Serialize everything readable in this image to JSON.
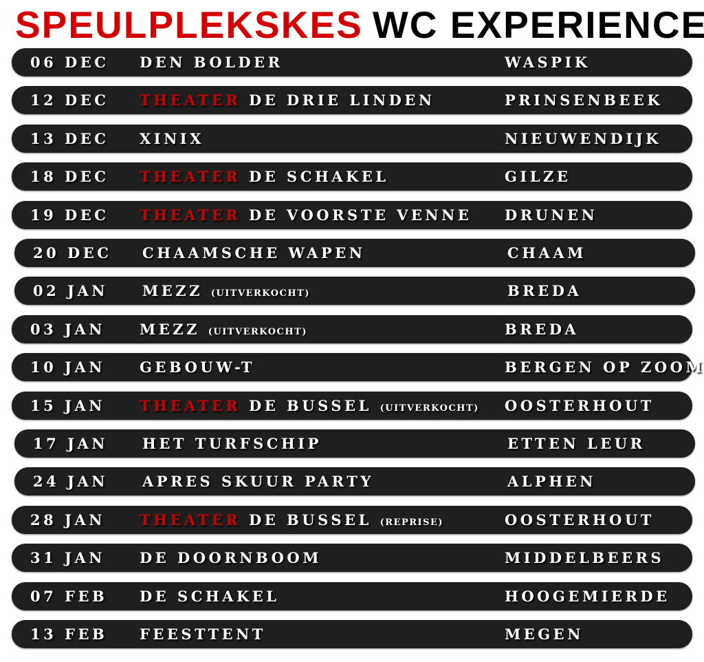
{
  "title": {
    "part1": "SPEULPLEKSKES",
    "part2": "WC EXPERIENCE",
    "color_red": "#d40000"
  },
  "theater_color": "#c50000",
  "rows": [
    {
      "date": "06 DEC",
      "prefix": "",
      "venue": "DEN BOLDER",
      "note": "",
      "city": "WASPIK"
    },
    {
      "date": "12 DEC",
      "prefix": "THEATER",
      "venue": "DE DRIE LINDEN",
      "note": "",
      "city": "PRINSENBEEK"
    },
    {
      "date": "13 DEC",
      "prefix": "",
      "venue": "XINIX",
      "note": "",
      "city": "NIEUWENDIJK"
    },
    {
      "date": "18 DEC",
      "prefix": "THEATER",
      "venue": "DE SCHAKEL",
      "note": "",
      "city": "GILZE"
    },
    {
      "date": "19 DEC",
      "prefix": "THEATER",
      "venue": "DE VOORSTE VENNE",
      "note": "",
      "city": "DRUNEN"
    },
    {
      "date": "20 DEC",
      "prefix": "",
      "venue": "CHAAMSCHE WAPEN",
      "note": "",
      "city": "CHAAM"
    },
    {
      "date": "02 JAN",
      "prefix": "",
      "venue": "MEZZ",
      "note": "(UITVERKOCHT)",
      "city": "BREDA"
    },
    {
      "date": "03 JAN",
      "prefix": "",
      "venue": "MEZZ",
      "note": "(UITVERKOCHT)",
      "city": "BREDA"
    },
    {
      "date": "10 JAN",
      "prefix": "",
      "venue": "GEBOUW-T",
      "note": "",
      "city": "BERGEN OP ZOOM"
    },
    {
      "date": "15 JAN",
      "prefix": "THEATER",
      "venue": "DE BUSSEL",
      "note": "(UITVERKOCHT)",
      "city": "OOSTERHOUT"
    },
    {
      "date": "17 JAN",
      "prefix": "",
      "venue": "HET TURFSCHIP",
      "note": "",
      "city": "ETTEN LEUR"
    },
    {
      "date": "24 JAN",
      "prefix": "",
      "venue": "APRES SKUUR PARTY",
      "note": "",
      "city": "ALPHEN"
    },
    {
      "date": "28 JAN",
      "prefix": "THEATER",
      "venue": "DE BUSSEL",
      "note": "(REPRISE)",
      "city": "OOSTERHOUT"
    },
    {
      "date": "31 JAN",
      "prefix": "",
      "venue": "DE DOORNBOOM",
      "note": "",
      "city": "MIDDELBEERS"
    },
    {
      "date": "07 FEB",
      "prefix": "",
      "venue": "DE SCHAKEL",
      "note": "",
      "city": "HOOGEMIERDE"
    },
    {
      "date": "13 FEB",
      "prefix": "",
      "venue": "FEESTTENT",
      "note": "",
      "city": "MEGEN"
    }
  ]
}
